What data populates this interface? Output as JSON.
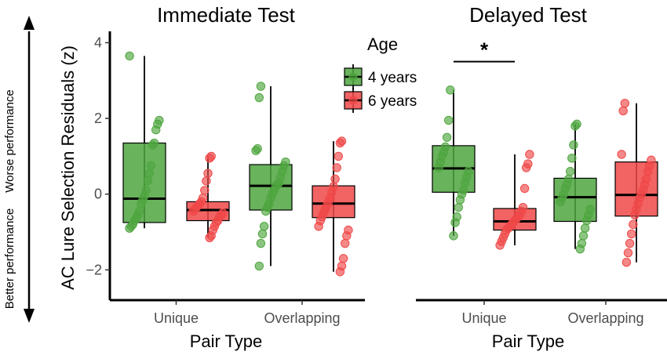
{
  "chart_data": {
    "type": "box",
    "ylabel": "AC Lure Selection Residuals (z)",
    "xlabel": "Pair Type",
    "side_labels": {
      "top": "Worse performance",
      "bottom": "Better performance"
    },
    "legend": {
      "title": "Age",
      "entries": [
        {
          "name": "4 years",
          "color": "#4fa63f"
        },
        {
          "name": "6 years",
          "color": "#f04848"
        }
      ]
    },
    "ylim": [
      -2.8,
      4.3
    ],
    "yticks": [
      -2,
      0,
      2,
      4
    ],
    "ytick_labels": [
      "−2",
      "0",
      "2",
      "4"
    ],
    "categories": [
      "Unique",
      "Overlapping"
    ],
    "panels": [
      {
        "title": "Immediate Test",
        "groups": [
          {
            "category": "Unique",
            "age": "4 years",
            "box": {
              "whisker_low": -0.9,
              "q1": -0.75,
              "median": -0.12,
              "q3": 1.35,
              "whisker_high": 3.65
            },
            "points": [
              3.65,
              1.95,
              1.85,
              1.7,
              1.35,
              1.3,
              0.75,
              0.55,
              0.35,
              0.1,
              -0.05,
              -0.15,
              -0.25,
              -0.45,
              -0.55,
              -0.65,
              -0.7,
              -0.8,
              -0.85,
              -0.9
            ]
          },
          {
            "category": "Unique",
            "age": "6 years",
            "box": {
              "whisker_low": -1.15,
              "q1": -0.7,
              "median": -0.42,
              "q3": -0.2,
              "whisker_high": 1.0
            },
            "points": [
              1.0,
              0.95,
              0.55,
              0.35,
              0.1,
              -0.1,
              -0.2,
              -0.25,
              -0.3,
              -0.35,
              -0.4,
              -0.45,
              -0.5,
              -0.55,
              -0.6,
              -0.7,
              -0.75,
              -0.85,
              -0.95,
              -1.1,
              -1.15
            ]
          },
          {
            "category": "Overlapping",
            "age": "4 years",
            "box": {
              "whisker_low": -1.9,
              "q1": -0.42,
              "median": 0.22,
              "q3": 0.78,
              "whisker_high": 2.85
            },
            "points": [
              2.85,
              2.55,
              1.2,
              1.15,
              0.85,
              0.75,
              0.6,
              0.45,
              0.3,
              0.25,
              0.2,
              0.1,
              0.0,
              -0.1,
              -0.25,
              -0.35,
              -0.45,
              -0.85,
              -1.05,
              -1.3,
              -1.9
            ]
          },
          {
            "category": "Overlapping",
            "age": "6 years",
            "box": {
              "whisker_low": -2.05,
              "q1": -0.62,
              "median": -0.25,
              "q3": 0.22,
              "whisker_high": 1.4
            },
            "points": [
              1.4,
              1.35,
              1.0,
              0.7,
              0.4,
              0.2,
              0.05,
              -0.1,
              -0.2,
              -0.3,
              -0.4,
              -0.5,
              -0.6,
              -0.7,
              -0.85,
              -0.95,
              -1.1,
              -1.3,
              -1.7,
              -1.9,
              -2.05
            ]
          }
        ]
      },
      {
        "title": "Delayed Test",
        "significance": {
          "label": "*",
          "between": [
            "Unique 4 years",
            "Unique 6 years"
          ],
          "y": 3.5
        },
        "groups": [
          {
            "category": "Unique",
            "age": "4 years",
            "box": {
              "whisker_low": -1.1,
              "q1": 0.05,
              "median": 0.68,
              "q3": 1.28,
              "whisker_high": 2.75
            },
            "points": [
              2.75,
              1.95,
              1.5,
              1.25,
              1.1,
              1.0,
              0.85,
              0.7,
              0.6,
              0.45,
              0.3,
              0.1,
              0.0,
              -0.15,
              -0.35,
              -0.6,
              -0.75,
              -1.1
            ]
          },
          {
            "category": "Unique",
            "age": "6 years",
            "box": {
              "whisker_low": -1.35,
              "q1": -0.95,
              "median": -0.72,
              "q3": -0.38,
              "whisker_high": 1.05
            },
            "points": [
              1.05,
              0.8,
              0.7,
              0.15,
              -0.35,
              -0.45,
              -0.55,
              -0.6,
              -0.65,
              -0.7,
              -0.75,
              -0.8,
              -0.85,
              -0.9,
              -0.95,
              -1.05,
              -1.15,
              -1.25,
              -1.35
            ]
          },
          {
            "category": "Overlapping",
            "age": "4 years",
            "box": {
              "whisker_low": -1.45,
              "q1": -0.72,
              "median": -0.08,
              "q3": 0.42,
              "whisker_high": 1.85
            },
            "points": [
              1.85,
              1.8,
              1.3,
              0.95,
              0.6,
              0.4,
              0.25,
              0.15,
              0.0,
              -0.1,
              -0.2,
              -0.4,
              -0.55,
              -0.7,
              -0.9,
              -1.1,
              -1.3,
              -1.45
            ]
          },
          {
            "category": "Overlapping",
            "age": "6 years",
            "box": {
              "whisker_low": -1.8,
              "q1": -0.58,
              "median": -0.02,
              "q3": 0.85,
              "whisker_high": 2.4
            },
            "points": [
              2.4,
              2.2,
              1.05,
              0.9,
              0.75,
              0.6,
              0.4,
              0.25,
              0.1,
              0.0,
              -0.1,
              -0.25,
              -0.4,
              -0.55,
              -0.8,
              -1.05,
              -1.3,
              -1.55,
              -1.8
            ]
          }
        ]
      }
    ]
  }
}
